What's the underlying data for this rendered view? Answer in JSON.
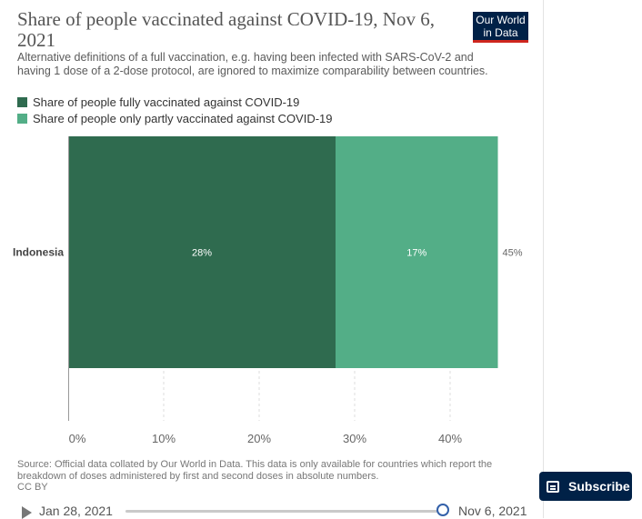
{
  "title": "Share of people vaccinated against COVID-19, Nov 6, 2021",
  "subtitle": "Alternative definitions of a full vaccination, e.g. having been infected with SARS-CoV-2 and having 1 dose of a 2-dose protocol, are ignored to maximize comparability between countries.",
  "logo": {
    "line1": "Our World",
    "line2": "in Data"
  },
  "source": "Source: Official data collated by Our World in Data. This data is only available for countries which report the breakdown of doses administered by first and second doses in absolute numbers.",
  "license": "CC BY",
  "timeline": {
    "start": "Jan 28, 2021",
    "end": "Nov 6, 2021",
    "position": 1.0
  },
  "subscribe_label": "Subscribe",
  "colors": {
    "full": "#2f6b4f",
    "partial": "#53ae87",
    "logo_bg": "#002147",
    "logo_accent": "#ce261e"
  },
  "chart_data": {
    "type": "bar",
    "orientation": "horizontal",
    "stacked": true,
    "categories": [
      "Indonesia"
    ],
    "series": [
      {
        "name": "Share of people fully vaccinated against COVID-19",
        "values": [
          28
        ],
        "labels": [
          "28%"
        ],
        "color": "#2f6b4f"
      },
      {
        "name": "Share of people only partly vaccinated against COVID-19",
        "values": [
          17
        ],
        "labels": [
          "17%"
        ],
        "color": "#53ae87"
      }
    ],
    "totals": [
      "45%"
    ],
    "xlim": [
      0,
      45
    ],
    "xticks": [
      0,
      10,
      20,
      30,
      40
    ],
    "xtick_labels": [
      "0%",
      "10%",
      "20%",
      "30%",
      "40%"
    ],
    "grid": true,
    "legend": "top-left"
  }
}
